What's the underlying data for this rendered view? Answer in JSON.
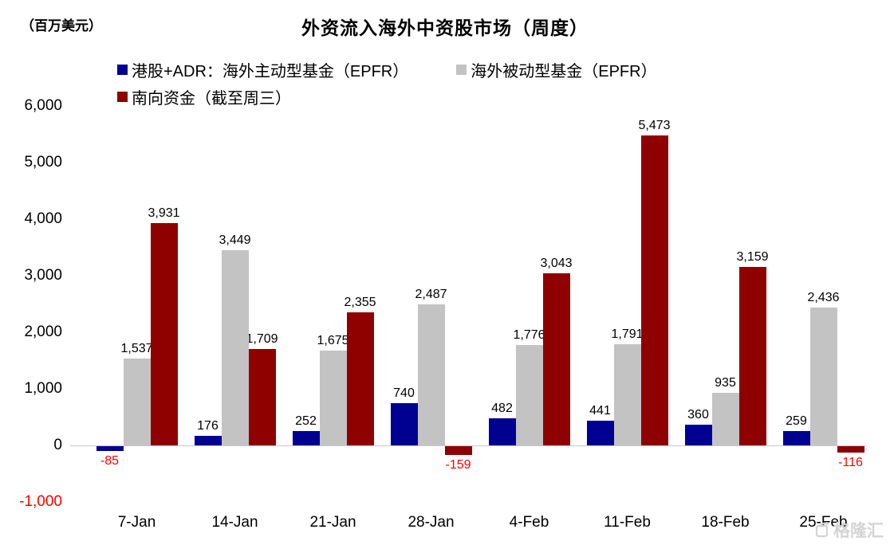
{
  "chart_data": {
    "type": "bar",
    "title": "外资流入海外中资股市场（周度）",
    "unit_label": "（百万美元）",
    "categories": [
      "7-Jan",
      "14-Jan",
      "21-Jan",
      "28-Jan",
      "4-Feb",
      "11-Feb",
      "18-Feb",
      "25-Feb"
    ],
    "series": [
      {
        "name": "港股+ADR：海外主动型基金（EPFR）",
        "color": "#000091",
        "values": [
          -85,
          176,
          252,
          740,
          482,
          441,
          360,
          259
        ]
      },
      {
        "name": "海外被动型基金（EPFR）",
        "color": "#C3C3C3",
        "values": [
          1537,
          3449,
          1675,
          2487,
          1776,
          1791,
          935,
          2436
        ]
      },
      {
        "name": "南向资金（截至周三）",
        "color": "#8F0000",
        "values": [
          3931,
          1709,
          2355,
          -159,
          3043,
          5473,
          3159,
          -116
        ]
      }
    ],
    "y_ticks": [
      "6,000",
      "5,000",
      "4,000",
      "3,000",
      "2,000",
      "1,000",
      "0",
      "-1,000"
    ],
    "ylim": [
      -1000,
      6000
    ],
    "grid": false,
    "legend_position": "top-left",
    "negative_label_color": "#FF0000",
    "axis_line_color": "#C9C9C9"
  },
  "watermark": {
    "text": "格隆汇"
  }
}
